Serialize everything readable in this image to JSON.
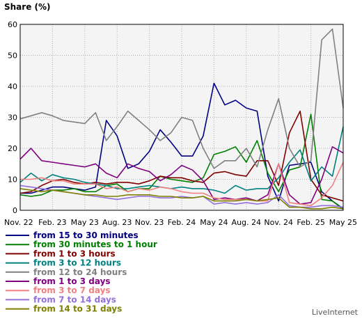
{
  "chart_data": {
    "type": "line",
    "title": "Share (%)",
    "credit": "LiveInternet",
    "ylim": [
      0,
      60
    ],
    "yticks": [
      0,
      10,
      20,
      30,
      40,
      50,
      60
    ],
    "xlim": [
      0,
      30
    ],
    "xticks": [
      {
        "pos": 0,
        "label": "Nov. 22"
      },
      {
        "pos": 3,
        "label": "Feb. 23"
      },
      {
        "pos": 6,
        "label": "May 23"
      },
      {
        "pos": 9,
        "label": "Aug. 23"
      },
      {
        "pos": 12,
        "label": "Nov. 23"
      },
      {
        "pos": 15,
        "label": "Feb. 24"
      },
      {
        "pos": 18,
        "label": "May 24"
      },
      {
        "pos": 21,
        "label": "Aug. 24"
      },
      {
        "pos": 24,
        "label": "Nov. 24"
      },
      {
        "pos": 27,
        "label": "Feb. 25"
      },
      {
        "pos": 30,
        "label": "May 25"
      }
    ],
    "grid": true,
    "legend_position": "bottom-left",
    "series": [
      {
        "name": "from 15 to 30 minutes",
        "color": "#000080",
        "values": [
          5.5,
          5.5,
          6.5,
          7.5,
          7.5,
          7.0,
          6.5,
          7.5,
          29.0,
          24.0,
          13.5,
          15.0,
          19.0,
          26.0,
          22.0,
          17.5,
          17.5,
          24.0,
          41.0,
          34.0,
          35.5,
          33.0,
          32.0,
          11.0,
          3.0,
          14.5,
          15.0,
          15.5,
          6.0,
          3.0,
          0.5
        ]
      },
      {
        "name": "from 30 minutes to 1 hour",
        "color": "#008000",
        "values": [
          5.0,
          4.5,
          5.0,
          6.5,
          6.5,
          7.0,
          6.0,
          6.0,
          8.0,
          8.5,
          6.0,
          7.0,
          7.0,
          11.0,
          10.0,
          9.5,
          9.0,
          10.5,
          18.0,
          19.0,
          20.5,
          15.5,
          22.5,
          12.0,
          6.0,
          13.0,
          14.0,
          31.0,
          3.5,
          3.0,
          0.3
        ]
      },
      {
        "name": "from 1 to 3 hours",
        "color": "#800000",
        "values": [
          5.5,
          6.0,
          8.0,
          9.5,
          10.0,
          9.0,
          8.5,
          9.0,
          8.5,
          9.0,
          9.0,
          8.5,
          9.5,
          11.0,
          10.5,
          10.5,
          9.5,
          9.0,
          12.0,
          12.5,
          11.5,
          11.0,
          16.0,
          16.0,
          8.0,
          25.0,
          32.0,
          10.0,
          5.0,
          4.0,
          3.0
        ]
      },
      {
        "name": "from 3 to 12 hours",
        "color": "#008080",
        "values": [
          9.0,
          12.0,
          9.5,
          11.5,
          10.5,
          10.0,
          9.0,
          8.5,
          8.0,
          7.0,
          7.0,
          7.5,
          8.0,
          7.5,
          7.0,
          7.5,
          7.0,
          7.0,
          6.5,
          5.5,
          8.0,
          6.5,
          7.0,
          7.0,
          10.5,
          15.5,
          19.5,
          9.5,
          14.0,
          11.0,
          27.0
        ]
      },
      {
        "name": "from 12 to 24 hours",
        "color": "#808080",
        "values": [
          29.5,
          30.5,
          31.5,
          30.5,
          29.0,
          28.5,
          28.0,
          31.5,
          22.5,
          27.0,
          32.0,
          29.0,
          26.0,
          22.5,
          25.0,
          30.0,
          29.0,
          20.0,
          13.5,
          16.0,
          16.0,
          20.0,
          14.0,
          26.0,
          36.0,
          20.0,
          14.0,
          16.0,
          55.0,
          58.5,
          33.0
        ]
      },
      {
        "name": "from 1 to 3 days",
        "color": "#800080",
        "values": [
          16.5,
          20.0,
          16.0,
          15.5,
          15.0,
          14.5,
          14.0,
          15.0,
          12.0,
          10.5,
          15.0,
          13.5,
          12.5,
          9.5,
          11.5,
          14.5,
          13.0,
          9.5,
          3.5,
          4.0,
          3.5,
          4.0,
          3.0,
          5.0,
          15.0,
          5.0,
          2.0,
          2.5,
          10.0,
          20.5,
          18.5
        ]
      },
      {
        "name": "from 3 to 7 days",
        "color": "#f08080",
        "values": [
          10.0,
          10.0,
          10.5,
          9.5,
          9.5,
          8.5,
          8.5,
          8.5,
          7.0,
          7.5,
          6.0,
          7.0,
          6.5,
          7.5,
          7.0,
          6.0,
          5.5,
          5.5,
          4.0,
          3.5,
          3.5,
          3.5,
          3.0,
          3.0,
          15.0,
          2.5,
          2.0,
          1.5,
          4.0,
          8.0,
          15.5
        ]
      },
      {
        "name": "from 7 to 14 days",
        "color": "#9370db",
        "values": [
          8.0,
          7.5,
          7.0,
          6.5,
          6.0,
          5.5,
          5.0,
          4.5,
          4.0,
          3.5,
          4.0,
          4.5,
          4.5,
          4.0,
          4.0,
          4.5,
          4.0,
          4.5,
          2.0,
          2.5,
          2.0,
          2.5,
          2.0,
          2.5,
          5.0,
          1.5,
          1.0,
          1.0,
          1.5,
          1.5,
          1.0
        ]
      },
      {
        "name": "from 14 to 31 days",
        "color": "#808000",
        "values": [
          7.0,
          6.5,
          6.0,
          6.5,
          6.0,
          5.5,
          5.0,
          5.0,
          4.5,
          4.5,
          5.0,
          5.0,
          5.0,
          4.5,
          4.5,
          4.0,
          4.0,
          4.5,
          3.0,
          3.0,
          3.0,
          3.5,
          3.0,
          3.5,
          4.0,
          1.0,
          1.0,
          0.5,
          0.5,
          1.0,
          0.5
        ]
      }
    ]
  }
}
